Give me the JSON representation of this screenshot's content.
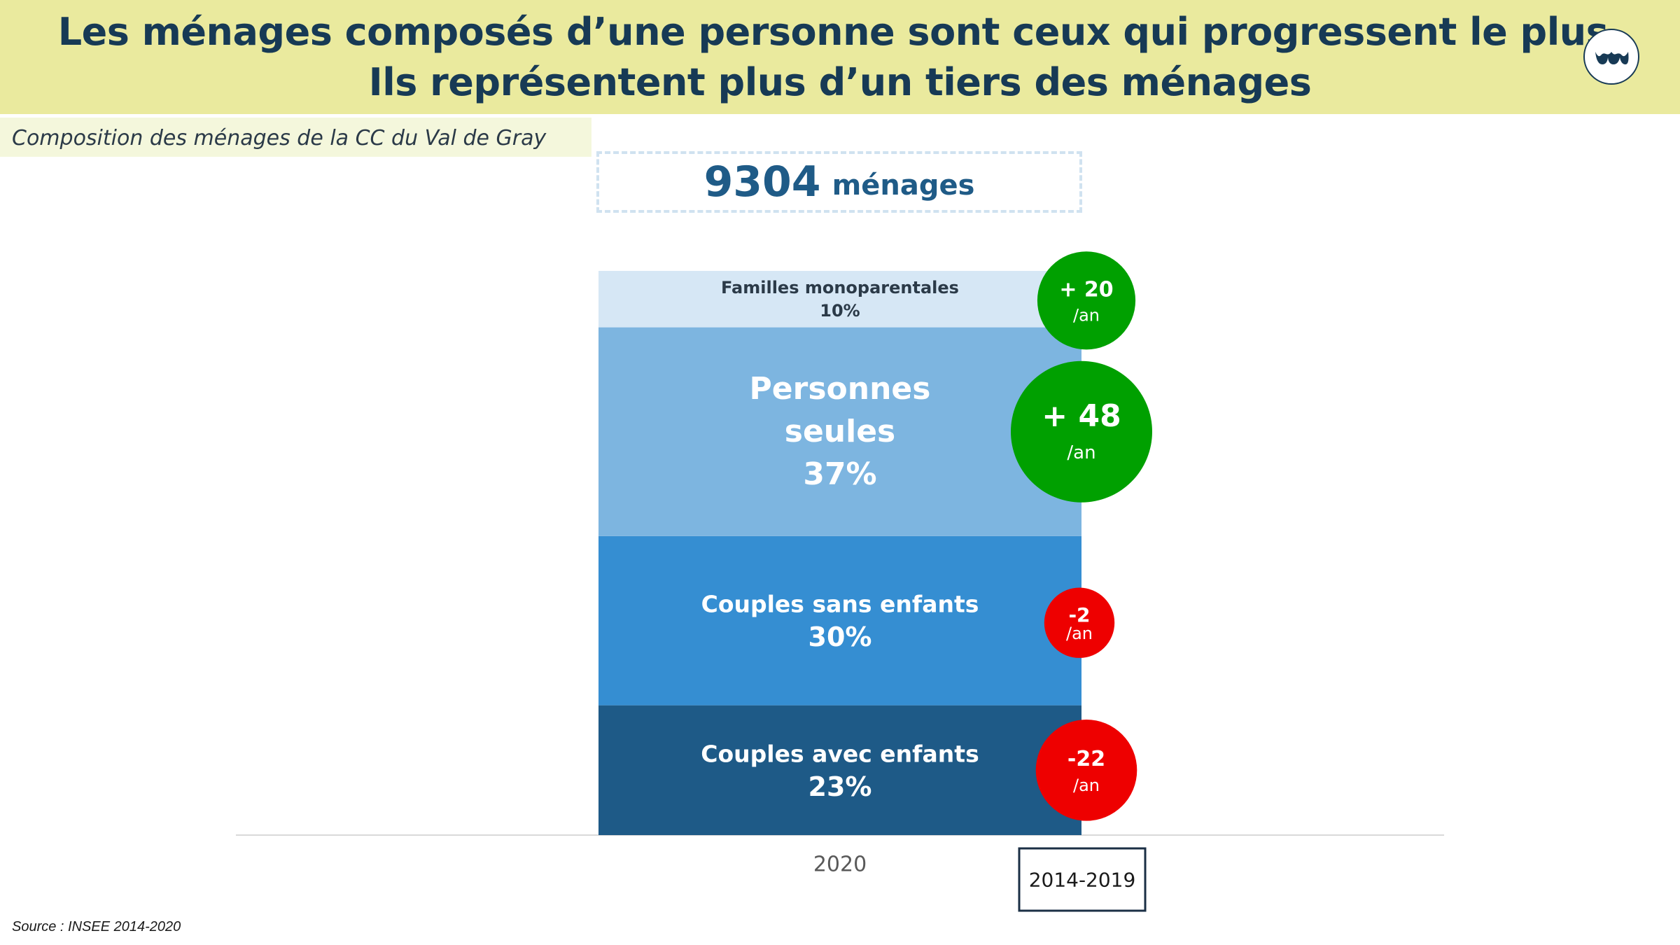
{
  "header": {
    "title_line1": "Les ménages composés d’une personne sont ceux qui progressent le plus.",
    "title_line2": "Ils représentent plus d’un tiers des ménages"
  },
  "subtitle": "Composition des ménages de la CC du Val de Gray",
  "total": {
    "number": "9304",
    "unit": "ménages"
  },
  "source": "Source :  INSEE 2014-2020",
  "colors": {
    "header_bg": "#eaea9e",
    "title": "#173a55",
    "growth_positive": "#00a000",
    "growth_negative": "#ee0000"
  },
  "icons": {
    "logo": "brand-logo-icon"
  },
  "chart_data": {
    "type": "bar",
    "stacked": true,
    "categories": [
      "2020"
    ],
    "ylim": [
      0,
      100
    ],
    "unit": "%",
    "grid": false,
    "legend": "none",
    "series": [
      {
        "name": "Couples avec enfants",
        "label_lines": [
          "Couples avec enfants"
        ],
        "value_label": "23%",
        "values": [
          23
        ],
        "color": "#1e5a87",
        "text_color": "#ffffff",
        "growth": {
          "value": -22,
          "label": "-22",
          "unit": "/an"
        }
      },
      {
        "name": "Couples sans enfants",
        "label_lines": [
          "Couples sans enfants"
        ],
        "value_label": "30%",
        "values": [
          30
        ],
        "color": "#358ed2",
        "text_color": "#ffffff",
        "growth": {
          "value": -2,
          "label": "-2",
          "unit": "/an"
        }
      },
      {
        "name": "Personnes seules",
        "label_lines": [
          "Personnes",
          "seules"
        ],
        "value_label": "37%",
        "values": [
          37
        ],
        "color": "#7db5e0",
        "text_color": "#ffffff",
        "growth": {
          "value": 48,
          "label": "+ 48",
          "unit": "/an"
        }
      },
      {
        "name": "Familles monoparentales",
        "label_lines": [
          "Familles monoparentales"
        ],
        "value_label": "10%",
        "values": [
          10
        ],
        "color": "#d6e7f5",
        "text_color": "#2b3a48",
        "growth": {
          "value": 20,
          "label": "+ 20",
          "unit": "/an"
        }
      }
    ],
    "growth_period_label": "2014-2019"
  }
}
